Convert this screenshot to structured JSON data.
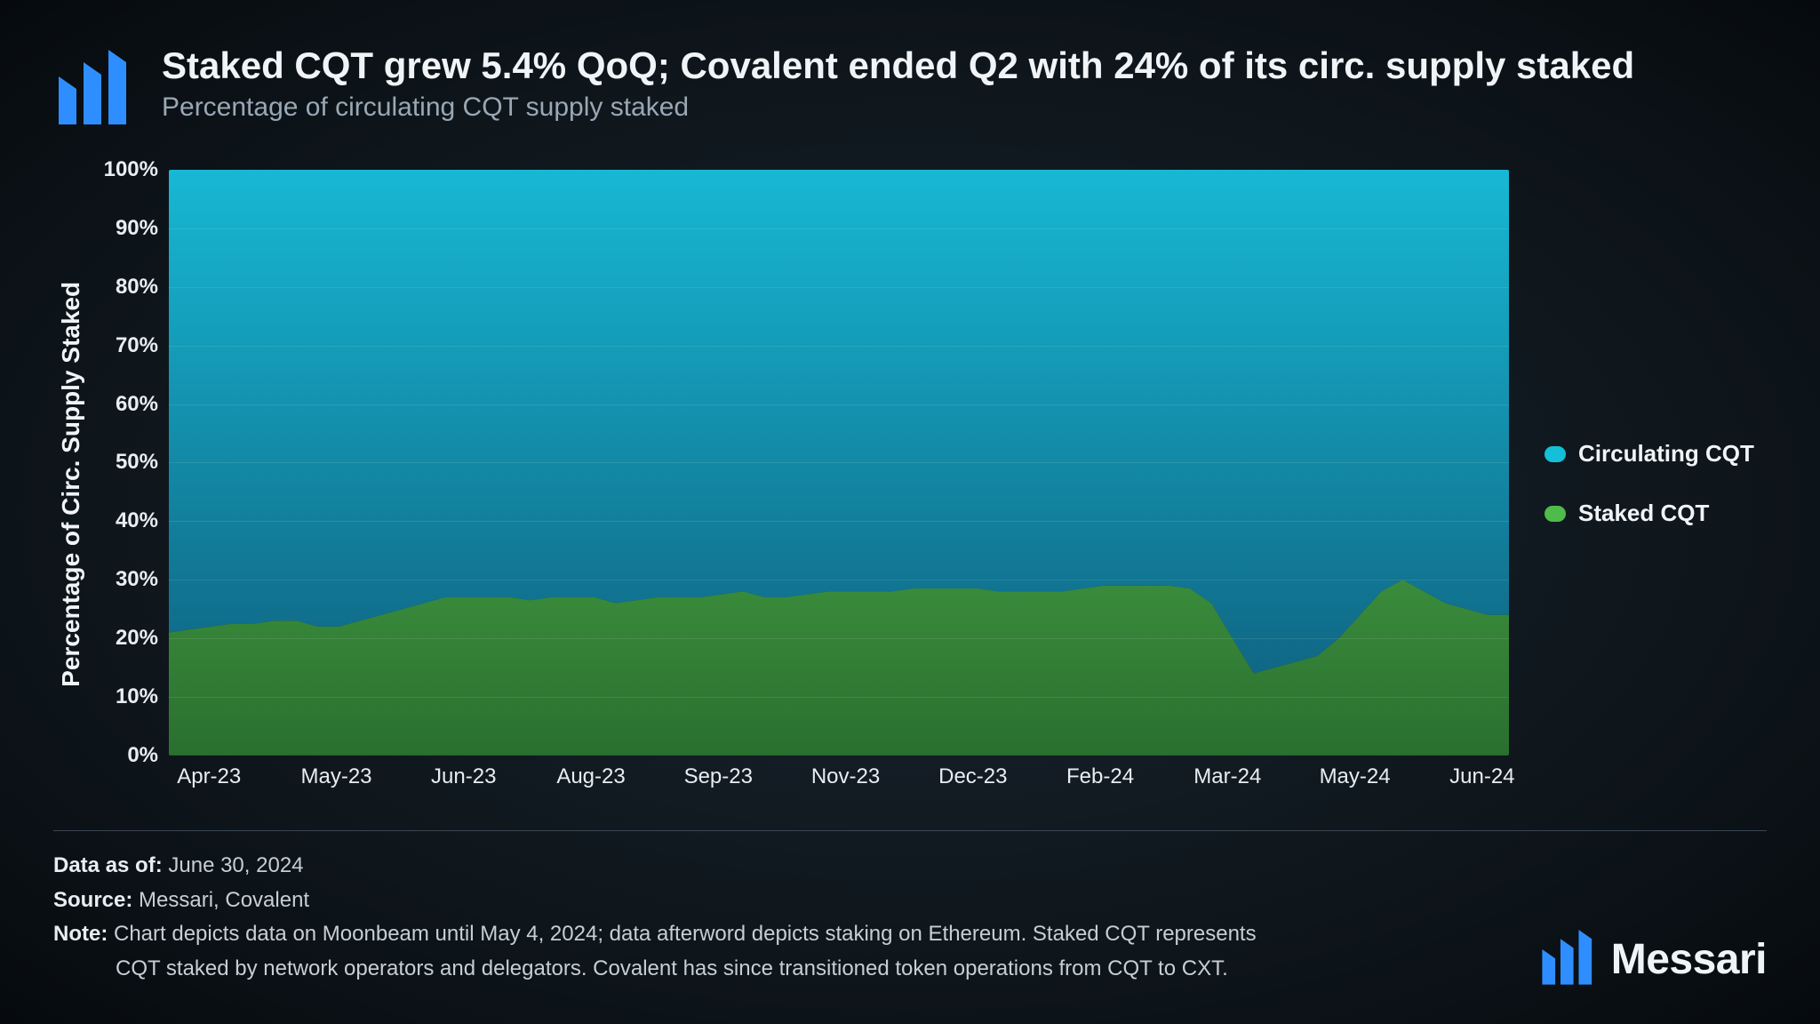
{
  "header": {
    "title": "Staked CQT grew 5.4% QoQ; Covalent ended Q2 with 24% of its circ. supply staked",
    "subtitle": "Percentage of circulating CQT supply staked"
  },
  "chart": {
    "type": "stacked-area",
    "yaxis": {
      "label": "Percentage of Circ. Supply Staked",
      "min": 0,
      "max": 100,
      "tick_step": 10,
      "tick_suffix": "%",
      "label_fontsize": 28,
      "tick_fontsize": 24,
      "tick_color": "#e8edf2"
    },
    "xaxis": {
      "labels": [
        "Apr-23",
        "May-23",
        "Jun-23",
        "Aug-23",
        "Sep-23",
        "Nov-23",
        "Dec-23",
        "Feb-24",
        "Mar-24",
        "May-24",
        "Jun-24"
      ],
      "positions_pct": [
        3,
        12.5,
        22,
        31.5,
        41,
        50.5,
        60,
        69.5,
        79,
        88.5,
        98
      ],
      "tick_fontsize": 24,
      "tick_color": "#e8edf2"
    },
    "grid_color": "rgba(255,255,255,0.10)",
    "series": {
      "staked": {
        "label": "Staked CQT",
        "color_top": "#5fcf5a",
        "color_bottom": "#2a6f2f",
        "legend_swatch": "#4fbb4a",
        "values_pct": [
          21,
          21.5,
          22,
          22.5,
          22.5,
          23,
          23,
          22,
          22,
          23,
          24,
          25,
          26,
          27,
          27,
          27,
          27,
          26.5,
          27,
          27,
          27,
          26,
          26.5,
          27,
          27,
          27,
          27.5,
          28,
          27,
          27,
          27.5,
          28,
          28,
          28,
          28,
          28.5,
          28.5,
          28.5,
          28.5,
          28,
          28,
          28,
          28,
          28.5,
          29,
          29,
          29,
          29,
          28.5,
          26,
          20,
          14,
          15,
          16,
          17,
          20,
          24,
          28,
          30,
          28,
          26,
          25,
          24,
          24
        ]
      },
      "circulating": {
        "label": "Circulating CQT",
        "color_top": "#17b8d4",
        "color_bottom": "#0e5a78",
        "legend_swatch": "#14c0d8"
      }
    }
  },
  "legend": {
    "items": [
      {
        "key": "circulating",
        "label": "Circulating CQT",
        "swatch": "#14c0d8"
      },
      {
        "key": "staked",
        "label": "Staked CQT",
        "swatch": "#4fbb4a"
      }
    ],
    "fontsize": 26
  },
  "footer": {
    "data_as_of_label": "Data as of:",
    "data_as_of_value": "June 30, 2024",
    "source_label": "Source:",
    "source_value": "Messari, Covalent",
    "note_label": "Note:",
    "note_line1": "Chart depicts data on Moonbeam until May 4, 2024; data afterword depicts staking on Ethereum. Staked CQT represents",
    "note_line2": "CQT staked by network operators and delegators. Covalent has since transitioned token operations from CQT to CXT.",
    "brand_name": "Messari",
    "brand_blue": "#2f8eff"
  },
  "colors": {
    "bg_center": "#1a2530",
    "bg_edge": "#060a0e",
    "text_primary": "#f0f4f7",
    "text_secondary": "#9aa8b5",
    "divider": "#3a4652"
  }
}
